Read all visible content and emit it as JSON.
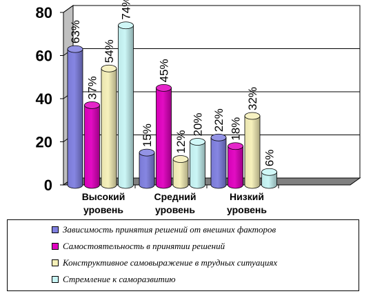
{
  "chart_data": {
    "type": "bar",
    "categories": [
      "Высокий уровень",
      "Средний уровень",
      "Низкий уровень"
    ],
    "category_lines": [
      [
        "Высокий",
        "уровень"
      ],
      [
        "Средний",
        "уровень"
      ],
      [
        "Низкий",
        "уровень"
      ]
    ],
    "ylim": [
      0,
      80
    ],
    "yticks": [
      0,
      20,
      40,
      60,
      80
    ],
    "grid": true,
    "legend_position": "bottom",
    "series": [
      {
        "name": "Зависимость принятия решений от внешних факторов",
        "color": "#8080e0",
        "values": [
          63,
          15,
          22
        ],
        "labels": [
          "63%",
          "15%",
          "22%"
        ]
      },
      {
        "name": "Самостоятельность в принятии решений",
        "color": "#e000c0",
        "values": [
          37,
          45,
          18
        ],
        "labels": [
          "37%",
          "45%",
          "18%"
        ]
      },
      {
        "name": "Конструктивное самовыражение в трудных ситуациях",
        "color": "#f5f0b8",
        "values": [
          54,
          12,
          32
        ],
        "labels": [
          "54%",
          "12%",
          "32%"
        ]
      },
      {
        "name": "Стремление к саморазвитию",
        "color": "#c8f5f5",
        "values": [
          74,
          20,
          6
        ],
        "labels": [
          "74%",
          "20%",
          "6%"
        ]
      }
    ]
  }
}
